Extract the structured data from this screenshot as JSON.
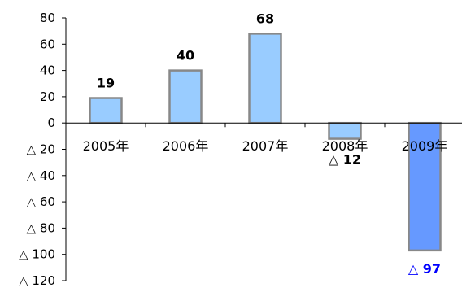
{
  "chart_data": {
    "type": "bar",
    "title": "",
    "xlabel": "",
    "ylabel": "",
    "categories": [
      "2005年",
      "2006年",
      "2007年",
      "2008年",
      "2009年"
    ],
    "values": [
      19,
      40,
      68,
      -12,
      -97
    ],
    "data_labels": [
      "19",
      "40",
      "68",
      "△ 12",
      "△ 97"
    ],
    "ylim": [
      -120,
      80
    ],
    "yticks": [
      80,
      60,
      40,
      20,
      0,
      -20,
      -40,
      -60,
      -80,
      -100,
      -120
    ],
    "ytick_labels": [
      "80",
      "60",
      "40",
      "20",
      "0",
      "△ 20",
      "△ 40",
      "△ 60",
      "△ 80",
      "△ 100",
      "△ 120"
    ],
    "grid": false,
    "legend": "none",
    "colors": {
      "bar_fill": "#99ccff",
      "bar_highlight_fill": "#6699ff",
      "bar_stroke": "#888888",
      "highlight_label": "#0000ff",
      "axis": "#000000"
    },
    "highlight_index": 4
  }
}
